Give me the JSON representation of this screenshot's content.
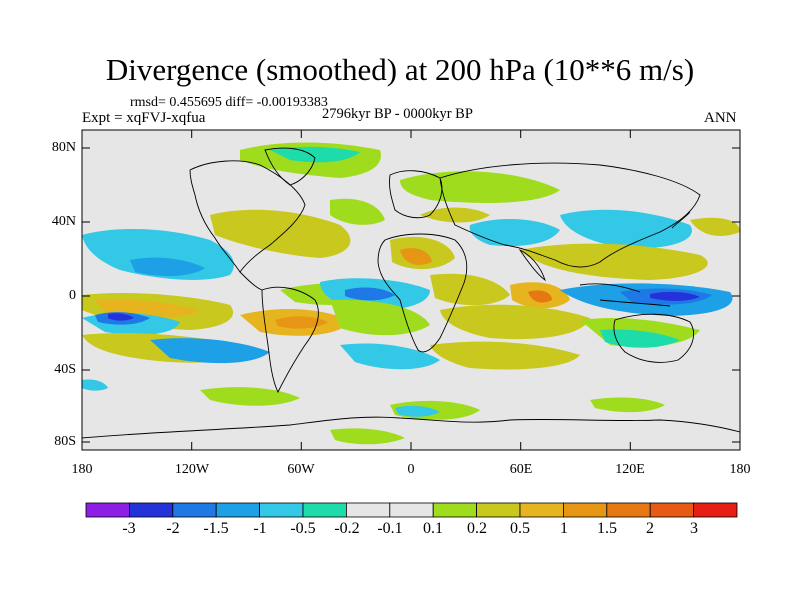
{
  "title": "Divergence (smoothed) at 200 hPa (10**6 m/s)",
  "stats_line": "rmsd= 0.455695 diff= -0.00193383",
  "experiment_label": "Expt = xqFVJ-xqfua",
  "period_label": "2796kyr BP - 0000kyr BP",
  "season_label": "ANN",
  "lat_labels": [
    "80N",
    "40N",
    "0",
    "40S",
    "80S"
  ],
  "lon_labels": [
    "180",
    "120W",
    "60W",
    "0",
    "60E",
    "120E",
    "180"
  ],
  "colorbar": {
    "colors": [
      "#8c1ee6",
      "#2332d9",
      "#1e78e6",
      "#1ea0e6",
      "#32c8e6",
      "#1edcaa",
      "#e6e6e6",
      "#a0dc1e",
      "#c8c81e",
      "#e6b41e",
      "#e69614",
      "#e67814",
      "#e65a14",
      "#e61e14"
    ],
    "labels": [
      "-3",
      "-2",
      "-1.5",
      "-1",
      "-0.5",
      "-0.2",
      "-0.1",
      "0.1",
      "0.2",
      "0.5",
      "1",
      "1.5",
      "2",
      "3"
    ]
  }
}
